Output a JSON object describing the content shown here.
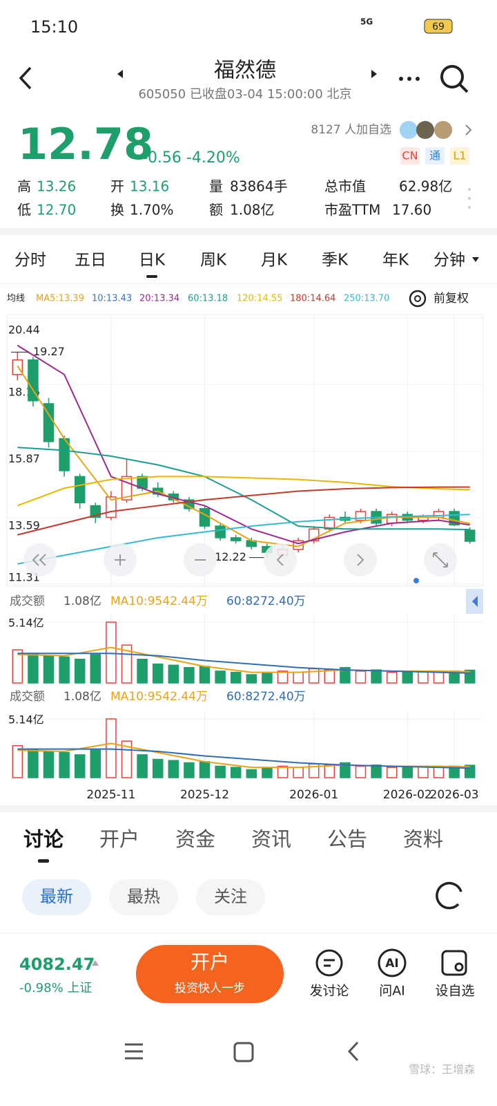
{
  "status": {
    "time": "15:10",
    "network": "5G",
    "battery": "69"
  },
  "header": {
    "title": "福然德",
    "subtitle": "605050 已收盘03-04 15:00:00 北京"
  },
  "quote": {
    "price": "12.78",
    "change": "-0.56 -4.20%",
    "followers": "8127 人加自选",
    "badges": [
      "CN",
      "通",
      "L1"
    ],
    "stats": [
      [
        {
          "label": "高",
          "value": "13.26"
        },
        {
          "label": "开",
          "value": "13.16"
        },
        {
          "label": "量",
          "value": "83864手"
        },
        {
          "label": "总市值",
          "value": "62.98亿"
        }
      ],
      [
        {
          "label": "低",
          "value": "12.70"
        },
        {
          "label": "换",
          "value": "1.70%"
        },
        {
          "label": "额",
          "value": "1.08亿"
        },
        {
          "label": "市盈TTM",
          "value": "17.60"
        }
      ]
    ]
  },
  "period_tabs": [
    "分时",
    "五日",
    "日K",
    "周K",
    "月K",
    "季K",
    "年K",
    "分钟"
  ],
  "ma_legend": {
    "title": "均线",
    "items": [
      {
        "text": "MA5:13.39",
        "color": "#e8a317"
      },
      {
        "text": "10:13.43",
        "color": "#3a74c4"
      },
      {
        "text": "20:13.34",
        "color": "#a0288c"
      },
      {
        "text": "60:13.18",
        "color": "#1b9e8f"
      },
      {
        "text": "120:14.55",
        "color": "#e8b800"
      },
      {
        "text": "180:14.64",
        "color": "#c0392b"
      },
      {
        "text": "250:13.70",
        "color": "#35b8d0"
      }
    ],
    "adjust": "前复权"
  },
  "chart_data": {
    "type": "candlestick",
    "open": [
      18.5,
      19.0,
      17.5,
      16.3,
      15.0,
      14.0,
      13.6,
      14.2,
      15.0,
      14.6,
      14.4,
      14.2,
      13.9,
      13.3,
      12.9,
      12.8,
      12.6,
      12.3,
      12.5,
      12.8,
      13.2,
      13.6,
      13.5,
      13.8,
      13.4,
      13.7,
      13.5,
      13.6,
      13.8,
      13.16
    ],
    "close": [
      19.0,
      17.6,
      16.2,
      15.2,
      14.1,
      13.6,
      14.3,
      15.0,
      14.6,
      14.4,
      14.2,
      13.9,
      13.3,
      12.9,
      12.8,
      12.6,
      12.4,
      12.5,
      12.8,
      13.2,
      13.6,
      13.5,
      13.8,
      13.4,
      13.7,
      13.5,
      13.6,
      13.8,
      13.34,
      12.78
    ],
    "high": [
      19.27,
      19.1,
      17.7,
      16.4,
      15.1,
      14.1,
      14.5,
      15.6,
      15.1,
      14.8,
      14.5,
      14.3,
      14.0,
      13.4,
      13.0,
      12.9,
      12.7,
      12.6,
      12.9,
      13.3,
      13.7,
      13.8,
      13.9,
      13.9,
      13.8,
      13.8,
      13.7,
      13.9,
      13.9,
      13.26
    ],
    "low": [
      18.3,
      17.4,
      16.0,
      15.0,
      13.9,
      13.4,
      13.5,
      14.1,
      14.5,
      14.3,
      14.1,
      13.8,
      13.2,
      12.8,
      12.7,
      12.5,
      12.22,
      12.3,
      12.4,
      12.7,
      13.1,
      13.4,
      13.4,
      13.3,
      13.3,
      13.4,
      13.4,
      13.5,
      13.3,
      12.7
    ],
    "up_color": "#e8413c",
    "down_color": "#1e9e6a",
    "ylim": [
      11.31,
      20.44
    ],
    "yticks": [
      11.31,
      13.59,
      15.87,
      18.16,
      20.44
    ],
    "xlim": [
      -0.5,
      29.5
    ],
    "xticks": [
      {
        "value": 6,
        "label": "2025-11"
      },
      {
        "value": 12,
        "label": "2025-12"
      },
      {
        "value": 19,
        "label": "2026-01"
      },
      {
        "value": 25,
        "label": "2026-02"
      },
      {
        "value": 28,
        "label": "2026-03"
      }
    ],
    "ma_x": [
      0,
      3,
      6,
      9,
      12,
      15,
      18,
      21,
      24,
      27,
      29
    ],
    "ma_lines": [
      {
        "color": "#e8a317",
        "values": [
          18.8,
          16.3,
          14.2,
          14.5,
          13.7,
          12.8,
          12.6,
          13.4,
          13.6,
          13.6,
          13.39
        ]
      },
      {
        "color": "#a0288c",
        "values": [
          19.5,
          18.5,
          15.0,
          14.4,
          14.0,
          13.2,
          12.7,
          13.1,
          13.4,
          13.5,
          13.34
        ]
      },
      {
        "color": "#1b9e8f",
        "values": [
          16.0,
          15.9,
          15.7,
          15.4,
          15.0,
          14.2,
          13.3,
          13.2,
          13.2,
          13.2,
          13.18
        ]
      },
      {
        "color": "#e8b800",
        "values": [
          14.0,
          14.6,
          14.9,
          15.0,
          15.0,
          14.95,
          14.9,
          14.8,
          14.65,
          14.58,
          14.55
        ]
      },
      {
        "color": "#c0392b",
        "values": [
          13.0,
          13.4,
          13.8,
          14.0,
          14.2,
          14.35,
          14.5,
          14.58,
          14.62,
          14.64,
          14.64
        ]
      },
      {
        "color": "#35b8d0",
        "values": [
          12.0,
          12.3,
          12.6,
          12.9,
          13.1,
          13.3,
          13.45,
          13.55,
          13.62,
          13.66,
          13.7
        ]
      }
    ],
    "volume": {
      "values": [
        2.8,
        2.5,
        2.3,
        2.2,
        2.0,
        2.4,
        5.14,
        3.2,
        2.0,
        1.6,
        1.5,
        1.3,
        1.4,
        1.0,
        0.9,
        0.7,
        0.8,
        1.0,
        0.9,
        1.2,
        1.1,
        1.3,
        1.0,
        1.1,
        0.9,
        1.0,
        1.0,
        0.9,
        1.0,
        1.08
      ],
      "ylim": [
        0,
        5.14
      ],
      "yticks": [
        {
          "value": 5.14,
          "label": "5.14亿"
        }
      ],
      "lines": [
        {
          "color": "#e8a317",
          "values": [
            2.4,
            2.3,
            3.0,
            2.2,
            1.4,
            0.9,
            0.9,
            1.1,
            1.0,
            1.0,
            0.95
          ]
        },
        {
          "color": "#2f6db5",
          "values": [
            2.5,
            2.5,
            2.5,
            2.3,
            1.9,
            1.6,
            1.3,
            1.1,
            1.0,
            0.9,
            0.83
          ]
        }
      ],
      "header": {
        "title": "成交额",
        "total": "1.08亿",
        "ma10": "MA10:9542.44万",
        "ma60": "60:8272.40万"
      }
    }
  },
  "content_tabs": [
    "讨论",
    "开户",
    "资金",
    "资讯",
    "公告",
    "资料"
  ],
  "filters": [
    "最新",
    "最热",
    "关注"
  ],
  "footer": {
    "index_value": "4082.47",
    "index_change": "-0.98% 上证",
    "open_button": "开户",
    "open_sub": "投资快人一步",
    "actions": [
      "发讨论",
      "问AI",
      "设自选"
    ],
    "watermark": "雪球：王增森"
  }
}
